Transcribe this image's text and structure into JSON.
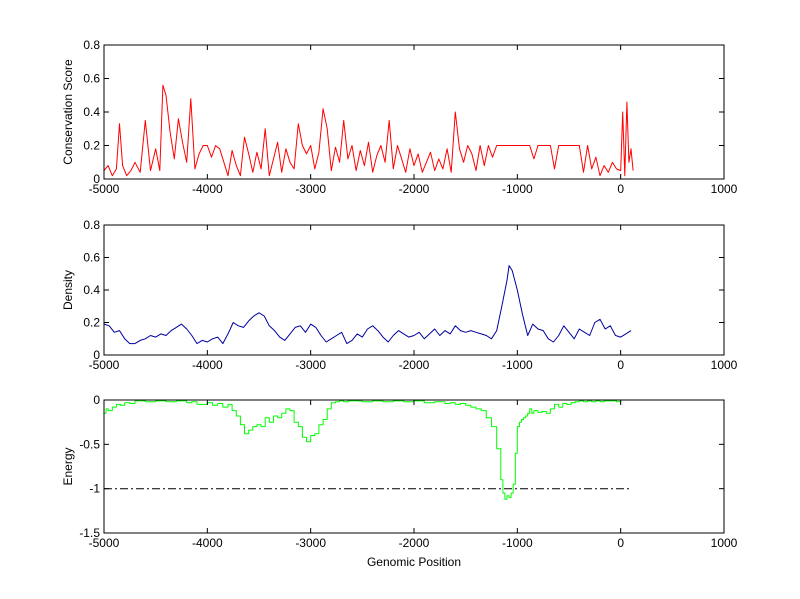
{
  "chart_data": [
    {
      "type": "line",
      "xlim": [
        -5000,
        1000
      ],
      "ylim": [
        0,
        0.8
      ],
      "x_ticks": [
        -5000,
        -4000,
        -3000,
        -2000,
        -1000,
        0,
        1000
      ],
      "y_ticks": [
        0,
        0.2,
        0.4,
        0.6,
        0.8
      ],
      "x_tick_labels": [
        "-5000",
        "-4000",
        "-3000",
        "-2000",
        "-1000",
        "0",
        "1000"
      ],
      "y_tick_labels": [
        "0",
        "0.2",
        "0.4",
        "0.6",
        "0.8"
      ],
      "xlabel": "",
      "ylabel": "Conservation Score",
      "grid": false,
      "series": [
        {
          "color": "#ff0000",
          "x": [
            -5000,
            -4960,
            -4920,
            -4880,
            -4850,
            -4820,
            -4780,
            -4740,
            -4700,
            -4650,
            -4600,
            -4550,
            -4500,
            -4460,
            -4430,
            -4400,
            -4360,
            -4320,
            -4280,
            -4240,
            -4200,
            -4160,
            -4120,
            -4080,
            -4040,
            -4000,
            -3960,
            -3920,
            -3880,
            -3840,
            -3800,
            -3760,
            -3720,
            -3680,
            -3640,
            -3600,
            -3560,
            -3520,
            -3480,
            -3440,
            -3400,
            -3360,
            -3320,
            -3280,
            -3240,
            -3200,
            -3160,
            -3120,
            -3080,
            -3040,
            -3000,
            -2960,
            -2920,
            -2880,
            -2840,
            -2800,
            -2760,
            -2720,
            -2680,
            -2640,
            -2600,
            -2560,
            -2520,
            -2480,
            -2440,
            -2400,
            -2360,
            -2320,
            -2280,
            -2240,
            -2200,
            -2160,
            -2120,
            -2080,
            -2040,
            -2000,
            -1960,
            -1920,
            -1880,
            -1840,
            -1800,
            -1760,
            -1720,
            -1680,
            -1640,
            -1600,
            -1560,
            -1520,
            -1480,
            -1440,
            -1400,
            -1360,
            -1320,
            -1280,
            -1240,
            -1200,
            -1160,
            -1120,
            -1080,
            -1040,
            -1000,
            -960,
            -920,
            -880,
            -840,
            -800,
            -760,
            -720,
            -680,
            -640,
            -600,
            -560,
            -520,
            -480,
            -440,
            -400,
            -360,
            -320,
            -280,
            -240,
            -200,
            -160,
            -120,
            -80,
            -40,
            0,
            20,
            40,
            60,
            80,
            100,
            120
          ],
          "y": [
            0.05,
            0.08,
            0.02,
            0.06,
            0.33,
            0.08,
            0.02,
            0.05,
            0.1,
            0.04,
            0.35,
            0.05,
            0.18,
            0.05,
            0.56,
            0.5,
            0.28,
            0.12,
            0.36,
            0.22,
            0.1,
            0.48,
            0.06,
            0.15,
            0.2,
            0.2,
            0.13,
            0.2,
            0.18,
            0.1,
            0.02,
            0.17,
            0.08,
            0.02,
            0.25,
            0.15,
            0.04,
            0.16,
            0.06,
            0.3,
            0.02,
            0.12,
            0.22,
            0.04,
            0.18,
            0.1,
            0.06,
            0.33,
            0.2,
            0.15,
            0.2,
            0.06,
            0.16,
            0.42,
            0.3,
            0.05,
            0.19,
            0.1,
            0.35,
            0.12,
            0.2,
            0.05,
            0.17,
            0.08,
            0.22,
            0.04,
            0.14,
            0.2,
            0.1,
            0.35,
            0.06,
            0.2,
            0.12,
            0.04,
            0.18,
            0.08,
            0.15,
            0.04,
            0.1,
            0.16,
            0.05,
            0.12,
            0.06,
            0.18,
            0.04,
            0.4,
            0.18,
            0.1,
            0.2,
            0.15,
            0.05,
            0.2,
            0.08,
            0.2,
            0.13,
            0.2,
            0.2,
            0.2,
            0.2,
            0.2,
            0.2,
            0.2,
            0.2,
            0.2,
            0.12,
            0.2,
            0.2,
            0.2,
            0.2,
            0.06,
            0.2,
            0.2,
            0.2,
            0.2,
            0.2,
            0.2,
            0.04,
            0.2,
            0.06,
            0.13,
            0.02,
            0.08,
            0.04,
            0.1,
            0.06,
            0.05,
            0.4,
            0.02,
            0.46,
            0.1,
            0.18,
            0.05
          ]
        }
      ]
    },
    {
      "type": "line",
      "xlim": [
        -5000,
        1000
      ],
      "ylim": [
        0,
        0.8
      ],
      "x_ticks": [
        -5000,
        -4000,
        -3000,
        -2000,
        -1000,
        0,
        1000
      ],
      "y_ticks": [
        0,
        0.2,
        0.4,
        0.6,
        0.8
      ],
      "x_tick_labels": [
        "-5000",
        "-4000",
        "-3000",
        "-2000",
        "-1000",
        "0",
        "1000"
      ],
      "y_tick_labels": [
        "0",
        "0.2",
        "0.4",
        "0.6",
        "0.8"
      ],
      "xlabel": "",
      "ylabel": "Density",
      "grid": false,
      "series": [
        {
          "color": "#0000a0",
          "x": [
            -5000,
            -4950,
            -4900,
            -4850,
            -4800,
            -4750,
            -4700,
            -4650,
            -4600,
            -4550,
            -4500,
            -4450,
            -4400,
            -4350,
            -4300,
            -4250,
            -4200,
            -4150,
            -4100,
            -4050,
            -4000,
            -3950,
            -3900,
            -3850,
            -3800,
            -3750,
            -3700,
            -3650,
            -3600,
            -3550,
            -3500,
            -3450,
            -3400,
            -3350,
            -3300,
            -3250,
            -3200,
            -3150,
            -3100,
            -3050,
            -3000,
            -2950,
            -2900,
            -2850,
            -2800,
            -2750,
            -2700,
            -2650,
            -2600,
            -2550,
            -2500,
            -2450,
            -2400,
            -2350,
            -2300,
            -2250,
            -2200,
            -2150,
            -2100,
            -2050,
            -2000,
            -1950,
            -1900,
            -1850,
            -1800,
            -1750,
            -1700,
            -1650,
            -1600,
            -1550,
            -1500,
            -1450,
            -1400,
            -1350,
            -1300,
            -1250,
            -1200,
            -1150,
            -1100,
            -1080,
            -1050,
            -1000,
            -950,
            -900,
            -850,
            -800,
            -750,
            -700,
            -650,
            -600,
            -550,
            -500,
            -450,
            -400,
            -350,
            -300,
            -250,
            -200,
            -150,
            -100,
            -50,
            0,
            50,
            100
          ],
          "y": [
            0.19,
            0.18,
            0.14,
            0.15,
            0.1,
            0.07,
            0.07,
            0.09,
            0.1,
            0.12,
            0.11,
            0.13,
            0.12,
            0.15,
            0.17,
            0.19,
            0.16,
            0.12,
            0.07,
            0.09,
            0.08,
            0.1,
            0.11,
            0.07,
            0.13,
            0.2,
            0.18,
            0.17,
            0.21,
            0.24,
            0.26,
            0.24,
            0.18,
            0.15,
            0.11,
            0.09,
            0.13,
            0.17,
            0.18,
            0.14,
            0.19,
            0.17,
            0.12,
            0.08,
            0.1,
            0.12,
            0.14,
            0.07,
            0.09,
            0.13,
            0.11,
            0.16,
            0.18,
            0.15,
            0.11,
            0.08,
            0.12,
            0.15,
            0.13,
            0.11,
            0.12,
            0.14,
            0.1,
            0.13,
            0.16,
            0.12,
            0.15,
            0.13,
            0.18,
            0.15,
            0.14,
            0.15,
            0.14,
            0.13,
            0.12,
            0.1,
            0.15,
            0.3,
            0.46,
            0.55,
            0.52,
            0.4,
            0.25,
            0.12,
            0.19,
            0.16,
            0.15,
            0.1,
            0.08,
            0.12,
            0.18,
            0.14,
            0.1,
            0.16,
            0.14,
            0.12,
            0.2,
            0.22,
            0.16,
            0.18,
            0.12,
            0.11,
            0.13,
            0.15
          ]
        }
      ]
    },
    {
      "type": "line",
      "xlim": [
        -5000,
        1000
      ],
      "ylim": [
        -1.5,
        0
      ],
      "x_ticks": [
        -5000,
        -4000,
        -3000,
        -2000,
        -1000,
        0,
        1000
      ],
      "y_ticks": [
        -1.5,
        -1,
        -0.5,
        0
      ],
      "x_tick_labels": [
        "-5000",
        "-4000",
        "-3000",
        "-2000",
        "-1000",
        "0",
        "1000"
      ],
      "y_tick_labels": [
        "-1.5",
        "-1",
        "-0.5",
        "0"
      ],
      "xlabel": "Genomic Position",
      "ylabel": "Energy",
      "grid": false,
      "series": [
        {
          "color": "#00ff00",
          "style": "step",
          "x": [
            -5000,
            -4980,
            -4960,
            -4920,
            -4880,
            -4840,
            -4800,
            -4750,
            -4700,
            -4600,
            -4500,
            -4400,
            -4300,
            -4200,
            -4150,
            -4100,
            -4000,
            -3950,
            -3900,
            -3850,
            -3800,
            -3760,
            -3720,
            -3680,
            -3640,
            -3600,
            -3560,
            -3520,
            -3480,
            -3440,
            -3400,
            -3360,
            -3320,
            -3280,
            -3240,
            -3200,
            -3160,
            -3120,
            -3080,
            -3040,
            -3000,
            -2960,
            -2920,
            -2880,
            -2840,
            -2800,
            -2760,
            -2720,
            -2680,
            -2640,
            -2600,
            -2500,
            -2400,
            -2300,
            -2200,
            -2100,
            -2000,
            -1900,
            -1800,
            -1700,
            -1650,
            -1600,
            -1550,
            -1500,
            -1450,
            -1400,
            -1350,
            -1300,
            -1250,
            -1200,
            -1160,
            -1140,
            -1120,
            -1100,
            -1080,
            -1060,
            -1040,
            -1020,
            -1000,
            -980,
            -960,
            -940,
            -920,
            -900,
            -880,
            -860,
            -840,
            -800,
            -760,
            -720,
            -680,
            -640,
            -600,
            -560,
            -520,
            -480,
            -440,
            -400,
            -360,
            -320,
            -280,
            -240,
            -200,
            -160,
            -120,
            -80,
            -40,
            0
          ],
          "y": [
            -0.15,
            -0.1,
            -0.12,
            -0.08,
            -0.05,
            -0.06,
            -0.03,
            -0.04,
            -0.01,
            -0.02,
            -0.01,
            -0.02,
            -0.01,
            -0.03,
            -0.02,
            -0.05,
            -0.03,
            -0.06,
            -0.04,
            -0.08,
            -0.05,
            -0.12,
            -0.18,
            -0.28,
            -0.38,
            -0.34,
            -0.3,
            -0.28,
            -0.3,
            -0.2,
            -0.25,
            -0.18,
            -0.2,
            -0.15,
            -0.1,
            -0.12,
            -0.25,
            -0.3,
            -0.42,
            -0.47,
            -0.4,
            -0.38,
            -0.28,
            -0.22,
            -0.1,
            -0.03,
            -0.02,
            -0.01,
            -0.02,
            -0.01,
            -0.01,
            -0.02,
            -0.01,
            -0.02,
            -0.01,
            -0.02,
            -0.01,
            -0.03,
            -0.02,
            -0.04,
            -0.03,
            -0.05,
            -0.04,
            -0.06,
            -0.08,
            -0.1,
            -0.12,
            -0.2,
            -0.3,
            -0.55,
            -0.9,
            -1.05,
            -1.12,
            -1.08,
            -1.1,
            -1.05,
            -0.95,
            -0.6,
            -0.3,
            -0.25,
            -0.22,
            -0.2,
            -0.18,
            -0.15,
            -0.1,
            -0.15,
            -0.12,
            -0.14,
            -0.13,
            -0.15,
            -0.1,
            -0.05,
            -0.08,
            -0.04,
            -0.05,
            -0.03,
            -0.02,
            -0.01,
            -0.02,
            -0.01,
            -0.02,
            -0.01,
            -0.02,
            -0.01,
            -0.01,
            -0.01,
            -0.02,
            -0.01
          ]
        },
        {
          "color": "#000000",
          "style": "dash-dot",
          "x": [
            -5000,
            100
          ],
          "y": [
            -1,
            -1
          ]
        }
      ]
    }
  ]
}
